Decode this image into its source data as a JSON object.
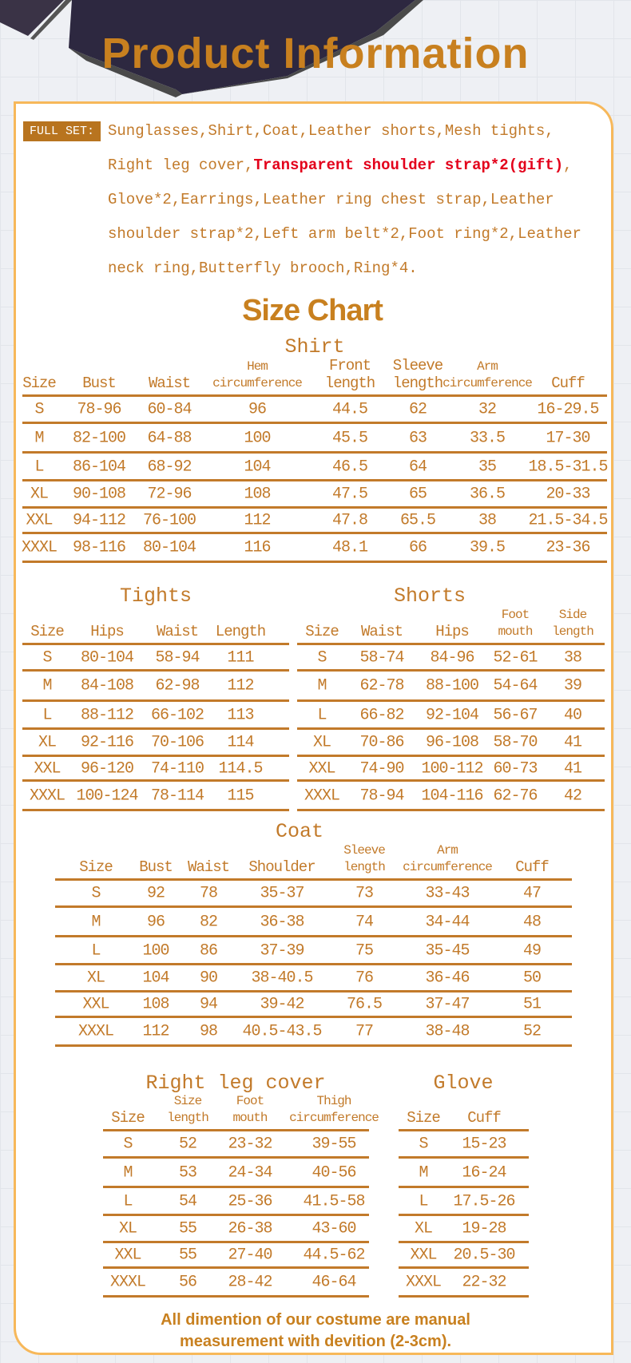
{
  "colors": {
    "accent": "#c27a2a",
    "border": "#f7b85a",
    "highlight": "#e3001b",
    "label_bg": "#b8741f"
  },
  "header": {
    "title": "Product Information"
  },
  "full_set": {
    "label": "FULL SET:",
    "lines": [
      [
        "Sunglasses,Shirt,Coat,Leather shorts,Mesh tights,"
      ],
      [
        "Right leg cover,",
        "Transparent shoulder strap*2(gift)",
        ","
      ],
      [
        "Glove*2,Earrings,Leather ring chest strap,Leather"
      ],
      [
        "shoulder strap*2,Left arm belt*2,Foot ring*2,Leather"
      ],
      [
        "neck ring,Butterfly brooch,Ring*4."
      ]
    ]
  },
  "size_chart_title": "Size Chart",
  "tables": {
    "shirt": {
      "title": "Shirt",
      "headers": [
        "Size",
        "Bust",
        "Waist",
        "Hem\ncircumference",
        "Front\nlength",
        "Sleeve\nlength",
        "Arm\ncircumference",
        "Cuff"
      ],
      "rows": [
        [
          "S",
          "78-96",
          "60-84",
          "96",
          "44.5",
          "62",
          "32",
          "16-29.5"
        ],
        [
          "M",
          "82-100",
          "64-88",
          "100",
          "45.5",
          "63",
          "33.5",
          "17-30"
        ],
        [
          "L",
          "86-104",
          "68-92",
          "104",
          "46.5",
          "64",
          "35",
          "18.5-31.5"
        ],
        [
          "XL",
          "90-108",
          "72-96",
          "108",
          "47.5",
          "65",
          "36.5",
          "20-33"
        ],
        [
          "XXL",
          "94-112",
          "76-100",
          "112",
          "47.8",
          "65.5",
          "38",
          "21.5-34.5"
        ],
        [
          "XXXL",
          "98-116",
          "80-104",
          "116",
          "48.1",
          "66",
          "39.5",
          "23-36"
        ]
      ]
    },
    "tights": {
      "title": "Tights",
      "headers": [
        "Size",
        "Hips",
        "Waist",
        "Length"
      ],
      "rows": [
        [
          "S",
          "80-104",
          "58-94",
          "111"
        ],
        [
          "M",
          "84-108",
          "62-98",
          "112"
        ],
        [
          "L",
          "88-112",
          "66-102",
          "113"
        ],
        [
          "XL",
          "92-116",
          "70-106",
          "114"
        ],
        [
          "XXL",
          "96-120",
          "74-110",
          "114.5"
        ],
        [
          "XXXL",
          "100-124",
          "78-114",
          "115"
        ]
      ]
    },
    "shorts": {
      "title": "Shorts",
      "headers": [
        "Size",
        "Waist",
        "Hips",
        "Foot\nmouth",
        "Side\nlength"
      ],
      "rows": [
        [
          "S",
          "58-74",
          "84-96",
          "52-61",
          "38"
        ],
        [
          "M",
          "62-78",
          "88-100",
          "54-64",
          "39"
        ],
        [
          "L",
          "66-82",
          "92-104",
          "56-67",
          "40"
        ],
        [
          "XL",
          "70-86",
          "96-108",
          "58-70",
          "41"
        ],
        [
          "XXL",
          "74-90",
          "100-112",
          "60-73",
          "41"
        ],
        [
          "XXXL",
          "78-94",
          "104-116",
          "62-76",
          "42"
        ]
      ]
    },
    "coat": {
      "title": "Coat",
      "headers": [
        "Size",
        "Bust",
        "Waist",
        "Shoulder",
        "Sleeve\nlength",
        "Arm\ncircumference",
        "Cuff"
      ],
      "rows": [
        [
          "S",
          "92",
          "78",
          "35-37",
          "73",
          "33-43",
          "47"
        ],
        [
          "M",
          "96",
          "82",
          "36-38",
          "74",
          "34-44",
          "48"
        ],
        [
          "L",
          "100",
          "86",
          "37-39",
          "75",
          "35-45",
          "49"
        ],
        [
          "XL",
          "104",
          "90",
          "38-40.5",
          "76",
          "36-46",
          "50"
        ],
        [
          "XXL",
          "108",
          "94",
          "39-42",
          "76.5",
          "37-47",
          "51"
        ],
        [
          "XXXL",
          "112",
          "98",
          "40.5-43.5",
          "77",
          "38-48",
          "52"
        ]
      ]
    },
    "leg": {
      "title": "Right leg cover",
      "headers": [
        "Size",
        "Size\nlength",
        "Foot\nmouth",
        "Thigh\ncircumference"
      ],
      "rows": [
        [
          "S",
          "52",
          "23-32",
          "39-55"
        ],
        [
          "M",
          "53",
          "24-34",
          "40-56"
        ],
        [
          "L",
          "54",
          "25-36",
          "41.5-58"
        ],
        [
          "XL",
          "55",
          "26-38",
          "43-60"
        ],
        [
          "XXL",
          "55",
          "27-40",
          "44.5-62"
        ],
        [
          "XXXL",
          "56",
          "28-42",
          "46-64"
        ]
      ]
    },
    "glove": {
      "title": "Glove",
      "headers": [
        "Size",
        "Cuff"
      ],
      "rows": [
        [
          "S",
          "15-23"
        ],
        [
          "M",
          "16-24"
        ],
        [
          "L",
          "17.5-26"
        ],
        [
          "XL",
          "19-28"
        ],
        [
          "XXL",
          "20.5-30"
        ],
        [
          "XXXL",
          "22-32"
        ]
      ]
    }
  },
  "footer": {
    "line1": "All dimention of our costume are manual",
    "line2": "measurement with devition (2-3cm)."
  }
}
